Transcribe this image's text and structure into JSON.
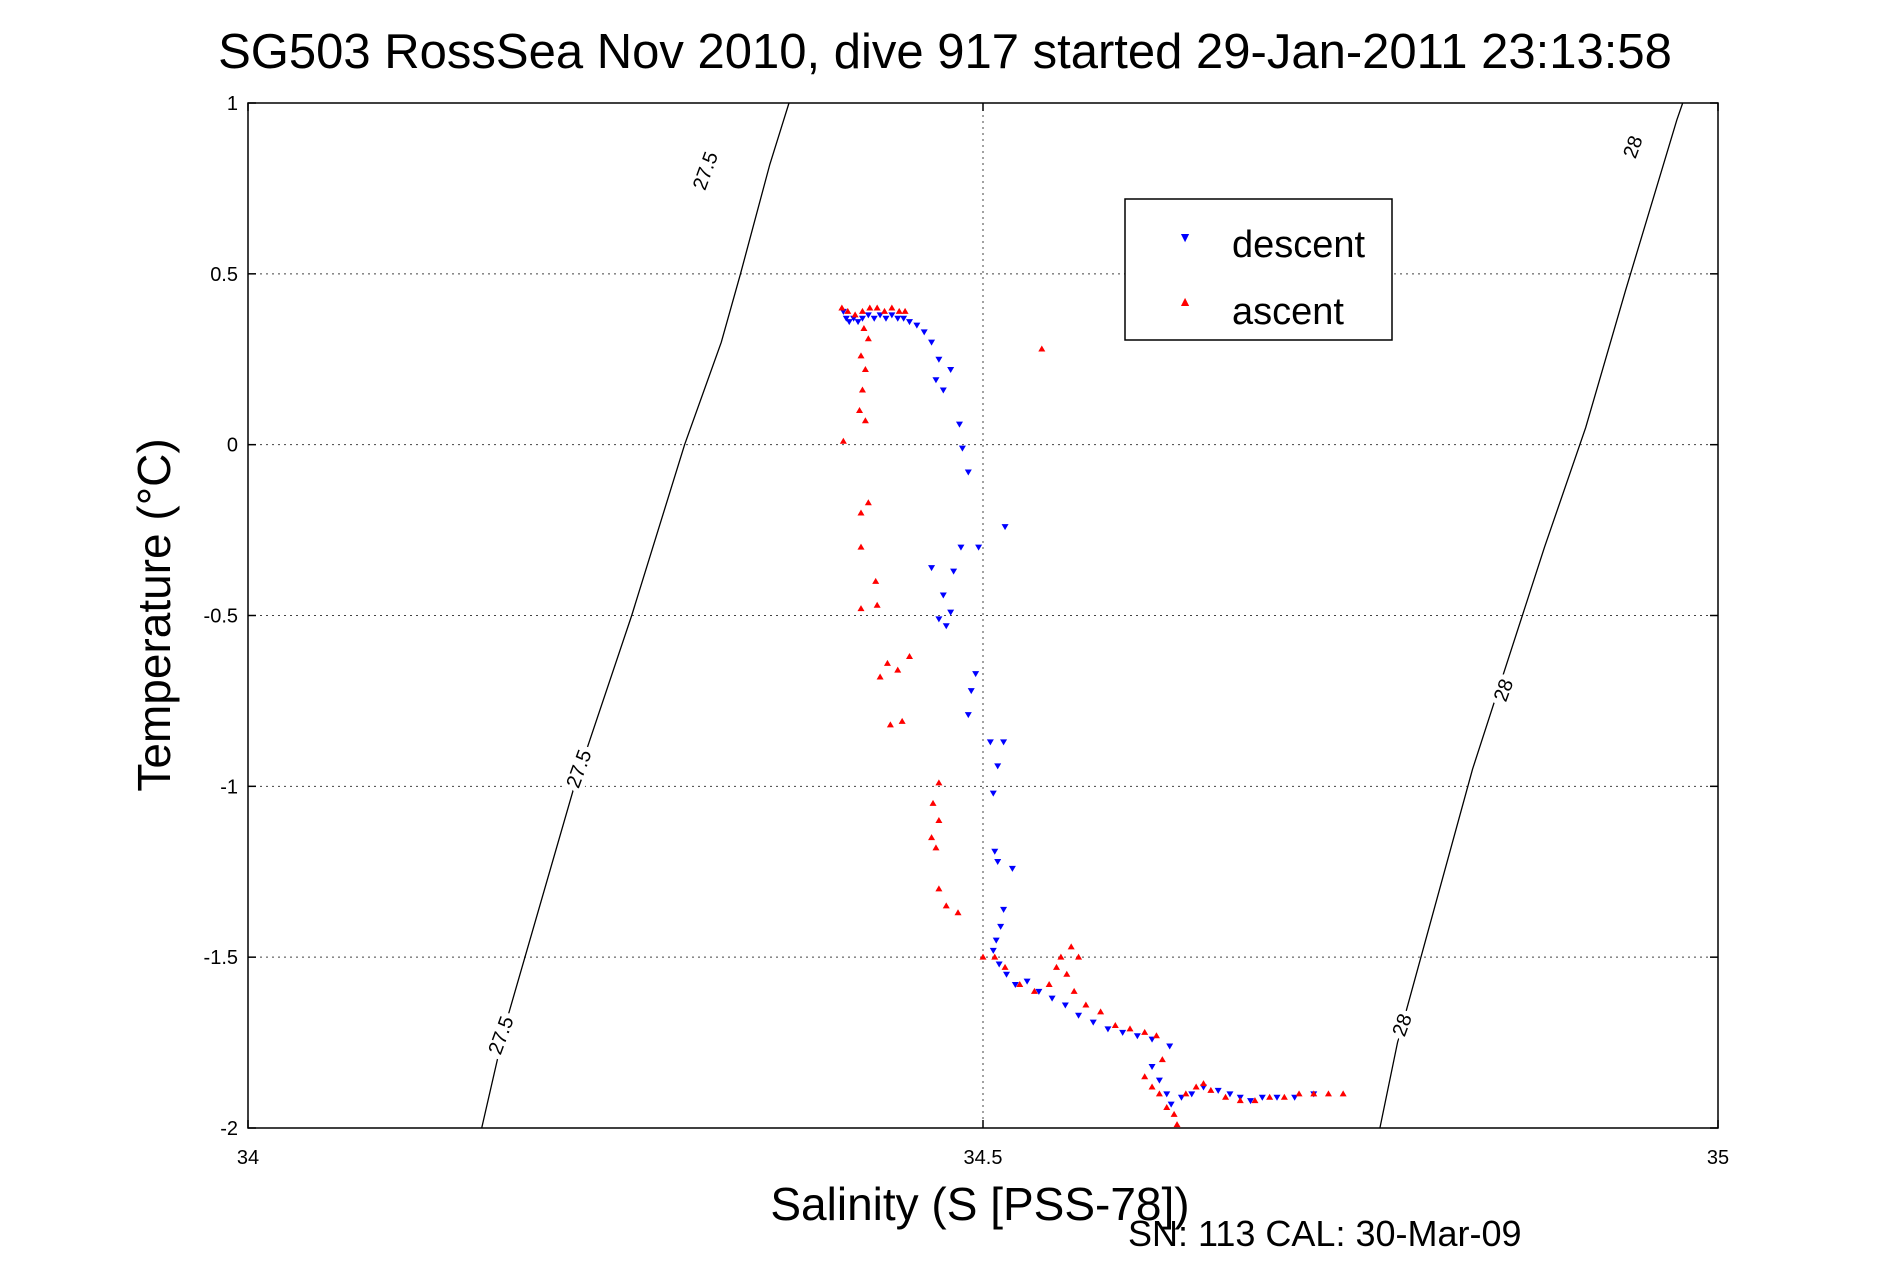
{
  "chart_data": {
    "type": "scatter",
    "title": "SG503 RossSea Nov 2010, dive 917 started 29-Jan-2011 23:13:58",
    "xlabel": "Salinity (S [PSS-78])",
    "ylabel": "Temperature (°C)",
    "footer": "SN: 113  CAL: 30-Mar-09",
    "xlim": [
      34,
      35
    ],
    "ylim": [
      -2,
      1
    ],
    "x_ticks": [
      34,
      34.5,
      35
    ],
    "x_tick_labels": [
      "34",
      "34.5",
      "35"
    ],
    "y_ticks": [
      1,
      0.5,
      0,
      -0.5,
      -1,
      -1.5,
      -2
    ],
    "y_tick_labels": [
      "1",
      "0.5",
      "0",
      "-0.5",
      "-1",
      "-1.5",
      "-2"
    ],
    "grid": true,
    "legend_position": "top-right",
    "density_contours": [
      {
        "level": "27.5",
        "color": "#000000",
        "points": [
          [
            34.159,
            -2
          ],
          [
            34.175,
            -1.7
          ],
          [
            34.222,
            -1
          ],
          [
            34.261,
            -0.5
          ],
          [
            34.297,
            0
          ],
          [
            34.335,
            0.5
          ],
          [
            34.322,
            0.3
          ],
          [
            34.355,
            0.82
          ],
          [
            34.368,
            1
          ]
        ],
        "labels": [
          [
            34.173,
            -1.73
          ],
          [
            34.226,
            -0.95
          ],
          [
            34.312,
            0.8
          ]
        ]
      },
      {
        "level": "28",
        "color": "#000000",
        "points": [
          [
            34.77,
            -2
          ],
          [
            34.782,
            -1.75
          ],
          [
            34.833,
            -0.95
          ],
          [
            34.882,
            -0.3
          ],
          [
            34.91,
            0.05
          ],
          [
            34.937,
            0.45
          ],
          [
            34.972,
            0.95
          ],
          [
            34.976,
            1
          ]
        ],
        "labels": [
          [
            34.786,
            -1.7
          ],
          [
            34.855,
            -0.72
          ],
          [
            34.943,
            0.87
          ]
        ]
      }
    ],
    "series": [
      {
        "name": "descent",
        "color": "#0000ff",
        "marker": "triangle-down",
        "points": [
          [
            34.405,
            0.39
          ],
          [
            34.407,
            0.37
          ],
          [
            34.409,
            0.36
          ],
          [
            34.412,
            0.37
          ],
          [
            34.415,
            0.36
          ],
          [
            34.418,
            0.37
          ],
          [
            34.422,
            0.38
          ],
          [
            34.426,
            0.37
          ],
          [
            34.43,
            0.38
          ],
          [
            34.434,
            0.37
          ],
          [
            34.438,
            0.38
          ],
          [
            34.442,
            0.37
          ],
          [
            34.446,
            0.37
          ],
          [
            34.45,
            0.36
          ],
          [
            34.455,
            0.35
          ],
          [
            34.46,
            0.33
          ],
          [
            34.465,
            0.3
          ],
          [
            34.47,
            0.25
          ],
          [
            34.478,
            0.22
          ],
          [
            34.468,
            0.19
          ],
          [
            34.473,
            0.16
          ],
          [
            34.484,
            0.06
          ],
          [
            34.486,
            -0.01
          ],
          [
            34.49,
            -0.08
          ],
          [
            34.485,
            -0.3
          ],
          [
            34.465,
            -0.36
          ],
          [
            34.48,
            -0.37
          ],
          [
            34.473,
            -0.44
          ],
          [
            34.478,
            -0.49
          ],
          [
            34.47,
            -0.51
          ],
          [
            34.475,
            -0.53
          ],
          [
            34.495,
            -0.67
          ],
          [
            34.492,
            -0.72
          ],
          [
            34.49,
            -0.79
          ],
          [
            34.497,
            -0.3
          ],
          [
            34.515,
            -0.24
          ],
          [
            34.505,
            -0.87
          ],
          [
            34.51,
            -0.94
          ],
          [
            34.514,
            -0.87
          ],
          [
            34.507,
            -1.02
          ],
          [
            34.508,
            -1.19
          ],
          [
            34.51,
            -1.22
          ],
          [
            34.52,
            -1.24
          ],
          [
            34.514,
            -1.36
          ],
          [
            34.512,
            -1.41
          ],
          [
            34.509,
            -1.45
          ],
          [
            34.507,
            -1.48
          ],
          [
            34.511,
            -1.52
          ],
          [
            34.516,
            -1.55
          ],
          [
            34.522,
            -1.58
          ],
          [
            34.53,
            -1.57
          ],
          [
            34.538,
            -1.6
          ],
          [
            34.547,
            -1.62
          ],
          [
            34.556,
            -1.64
          ],
          [
            34.565,
            -1.67
          ],
          [
            34.575,
            -1.69
          ],
          [
            34.585,
            -1.71
          ],
          [
            34.595,
            -1.72
          ],
          [
            34.605,
            -1.73
          ],
          [
            34.615,
            -1.74
          ],
          [
            34.627,
            -1.76
          ],
          [
            34.615,
            -1.82
          ],
          [
            34.62,
            -1.86
          ],
          [
            34.625,
            -1.9
          ],
          [
            34.628,
            -1.93
          ],
          [
            34.635,
            -1.91
          ],
          [
            34.642,
            -1.9
          ],
          [
            34.65,
            -1.88
          ],
          [
            34.66,
            -1.89
          ],
          [
            34.668,
            -1.9
          ],
          [
            34.675,
            -1.91
          ],
          [
            34.682,
            -1.92
          ],
          [
            34.69,
            -1.91
          ],
          [
            34.7,
            -1.91
          ],
          [
            34.712,
            -1.91
          ],
          [
            34.725,
            -1.9
          ]
        ]
      },
      {
        "name": "ascent",
        "color": "#ff0000",
        "marker": "triangle-up",
        "points": [
          [
            34.404,
            0.4
          ],
          [
            34.408,
            0.39
          ],
          [
            34.413,
            0.38
          ],
          [
            34.418,
            0.39
          ],
          [
            34.423,
            0.4
          ],
          [
            34.428,
            0.4
          ],
          [
            34.433,
            0.39
          ],
          [
            34.438,
            0.4
          ],
          [
            34.443,
            0.39
          ],
          [
            34.447,
            0.39
          ],
          [
            34.419,
            0.34
          ],
          [
            34.422,
            0.31
          ],
          [
            34.417,
            0.26
          ],
          [
            34.42,
            0.22
          ],
          [
            34.418,
            0.16
          ],
          [
            34.416,
            0.1
          ],
          [
            34.42,
            0.07
          ],
          [
            34.405,
            0.01
          ],
          [
            34.417,
            -0.2
          ],
          [
            34.422,
            -0.17
          ],
          [
            34.417,
            -0.3
          ],
          [
            34.427,
            -0.4
          ],
          [
            34.417,
            -0.48
          ],
          [
            34.428,
            -0.47
          ],
          [
            34.435,
            -0.64
          ],
          [
            34.442,
            -0.66
          ],
          [
            34.43,
            -0.68
          ],
          [
            34.45,
            -0.62
          ],
          [
            34.437,
            -0.82
          ],
          [
            34.445,
            -0.81
          ],
          [
            34.47,
            -0.99
          ],
          [
            34.466,
            -1.05
          ],
          [
            34.47,
            -1.1
          ],
          [
            34.465,
            -1.15
          ],
          [
            34.468,
            -1.18
          ],
          [
            34.47,
            -1.3
          ],
          [
            34.475,
            -1.35
          ],
          [
            34.483,
            -1.37
          ],
          [
            34.54,
            0.28
          ],
          [
            34.5,
            -1.5
          ],
          [
            34.508,
            -1.5
          ],
          [
            34.515,
            -1.53
          ],
          [
            34.525,
            -1.58
          ],
          [
            34.535,
            -1.6
          ],
          [
            34.545,
            -1.58
          ],
          [
            34.55,
            -1.53
          ],
          [
            34.553,
            -1.5
          ],
          [
            34.56,
            -1.47
          ],
          [
            34.565,
            -1.5
          ],
          [
            34.557,
            -1.55
          ],
          [
            34.562,
            -1.6
          ],
          [
            34.57,
            -1.64
          ],
          [
            34.58,
            -1.66
          ],
          [
            34.59,
            -1.7
          ],
          [
            34.6,
            -1.71
          ],
          [
            34.61,
            -1.72
          ],
          [
            34.618,
            -1.73
          ],
          [
            34.622,
            -1.8
          ],
          [
            34.61,
            -1.85
          ],
          [
            34.615,
            -1.88
          ],
          [
            34.62,
            -1.9
          ],
          [
            34.625,
            -1.94
          ],
          [
            34.63,
            -1.96
          ],
          [
            34.632,
            -1.99
          ],
          [
            34.638,
            -1.9
          ],
          [
            34.645,
            -1.88
          ],
          [
            34.65,
            -1.87
          ],
          [
            34.655,
            -1.89
          ],
          [
            34.665,
            -1.91
          ],
          [
            34.675,
            -1.92
          ],
          [
            34.685,
            -1.92
          ],
          [
            34.695,
            -1.91
          ],
          [
            34.705,
            -1.91
          ],
          [
            34.715,
            -1.9
          ],
          [
            34.725,
            -1.9
          ],
          [
            34.735,
            -1.9
          ],
          [
            34.745,
            -1.9
          ]
        ]
      }
    ]
  }
}
